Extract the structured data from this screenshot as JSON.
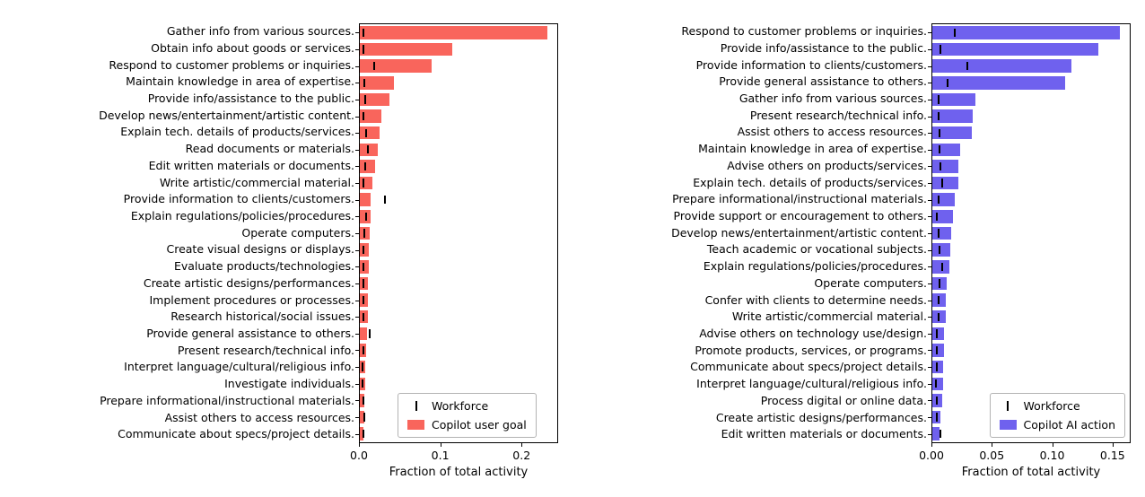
{
  "chart_data": [
    {
      "type": "bar",
      "orientation": "horizontal",
      "xlabel": "Fraction of total activity",
      "xlim": [
        0,
        0.245
      ],
      "xticks": [
        0.0,
        0.1,
        0.2
      ],
      "xtick_labels": [
        "0.0",
        "0.1",
        "0.2"
      ],
      "bar_color": "#f9655c",
      "marker_color": "#000000",
      "legend": [
        "Workforce",
        "Copilot user goal"
      ],
      "legend_position": "lower-left-inside",
      "grid": false,
      "categories": [
        "Gather info from various sources.",
        "Obtain info about goods or services.",
        "Respond to customer problems or inquiries.",
        "Maintain knowledge in area of expertise.",
        "Provide info/assistance to the public.",
        "Develop news/entertainment/artistic content.",
        "Explain tech. details of products/services.",
        "Read documents or materials.",
        "Edit written materials or documents.",
        "Write artistic/commercial material.",
        "Provide information to clients/customers.",
        "Explain regulations/policies/procedures.",
        "Operate computers.",
        "Create visual designs or displays.",
        "Evaluate products/technologies.",
        "Create artistic designs/performances.",
        "Implement procedures or processes.",
        "Research historical/social issues.",
        "Provide general assistance to others.",
        "Present research/technical info.",
        "Interpret language/cultural/religious info.",
        "Investigate individuals.",
        "Prepare informational/instructional materials.",
        "Assist others to access resources.",
        "Communicate about specs/project details."
      ],
      "values": [
        0.233,
        0.115,
        0.089,
        0.042,
        0.037,
        0.027,
        0.024,
        0.022,
        0.019,
        0.016,
        0.013,
        0.013,
        0.012,
        0.011,
        0.011,
        0.01,
        0.01,
        0.01,
        0.009,
        0.008,
        0.007,
        0.007,
        0.006,
        0.006,
        0.005
      ],
      "workforce": [
        0.005,
        0.004,
        0.018,
        0.006,
        0.007,
        0.005,
        0.008,
        0.01,
        0.007,
        0.005,
        0.031,
        0.008,
        0.006,
        0.005,
        0.005,
        0.004,
        0.005,
        0.004,
        0.012,
        0.005,
        0.003,
        0.003,
        0.005,
        0.006,
        0.004
      ]
    },
    {
      "type": "bar",
      "orientation": "horizontal",
      "xlabel": "Fraction of total activity",
      "xlim": [
        0,
        0.165
      ],
      "xticks": [
        0.0,
        0.05,
        0.1,
        0.15
      ],
      "xtick_labels": [
        "0.00",
        "0.05",
        "0.10",
        "0.15"
      ],
      "bar_color": "#6f61ee",
      "marker_color": "#000000",
      "legend": [
        "Workforce",
        "Copilot AI action"
      ],
      "legend_position": "lower-right-inside",
      "grid": false,
      "categories": [
        "Respond to customer problems or inquiries.",
        "Provide info/assistance to the public.",
        "Provide information to clients/customers.",
        "Provide general assistance to others.",
        "Gather info from various sources.",
        "Present research/technical info.",
        "Assist others to access resources.",
        "Maintain knowledge in area of expertise.",
        "Advise others on products/services.",
        "Explain tech. details of products/services.",
        "Prepare informational/instructional materials.",
        "Provide support or encouragement to others.",
        "Develop news/entertainment/artistic content.",
        "Teach academic or vocational subjects.",
        "Explain regulations/policies/procedures.",
        "Operate computers.",
        "Confer with clients to determine needs.",
        "Write artistic/commercial material.",
        "Advise others on technology use/design.",
        "Promote products, services, or programs.",
        "Communicate about specs/project details.",
        "Interpret language/cultural/religious info.",
        "Process digital or online data.",
        "Create artistic designs/performances.",
        "Edit written materials or documents."
      ],
      "values": [
        0.157,
        0.139,
        0.116,
        0.111,
        0.036,
        0.034,
        0.033,
        0.023,
        0.022,
        0.022,
        0.019,
        0.017,
        0.016,
        0.015,
        0.014,
        0.012,
        0.011,
        0.011,
        0.01,
        0.01,
        0.009,
        0.009,
        0.008,
        0.007,
        0.006
      ],
      "workforce": [
        0.019,
        0.007,
        0.029,
        0.013,
        0.005,
        0.005,
        0.006,
        0.006,
        0.007,
        0.008,
        0.005,
        0.004,
        0.005,
        0.006,
        0.008,
        0.006,
        0.005,
        0.005,
        0.004,
        0.004,
        0.004,
        0.003,
        0.004,
        0.004,
        0.007
      ]
    }
  ]
}
